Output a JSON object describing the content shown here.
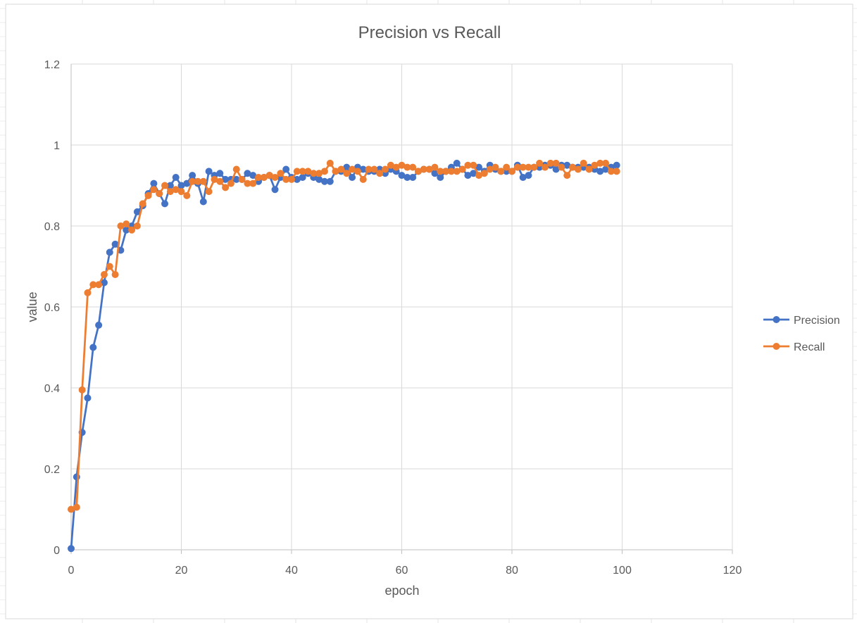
{
  "chart_data": {
    "type": "line",
    "title": "Precision vs Recall",
    "xlabel": "epoch",
    "ylabel": "value",
    "xlim": [
      0,
      120
    ],
    "ylim": [
      0,
      1.2
    ],
    "x_ticks": [
      "0",
      "20",
      "40",
      "60",
      "80",
      "100",
      "120"
    ],
    "y_ticks": [
      "0",
      "0.2",
      "0.4",
      "0.6",
      "0.8",
      "1",
      "1.2"
    ],
    "grid": true,
    "legend_position": "right",
    "x": [
      0,
      1,
      2,
      3,
      4,
      5,
      6,
      7,
      8,
      9,
      10,
      11,
      12,
      13,
      14,
      15,
      16,
      17,
      18,
      19,
      20,
      21,
      22,
      23,
      24,
      25,
      26,
      27,
      28,
      29,
      30,
      31,
      32,
      33,
      34,
      35,
      36,
      37,
      38,
      39,
      40,
      41,
      42,
      43,
      44,
      45,
      46,
      47,
      48,
      49,
      50,
      51,
      52,
      53,
      54,
      55,
      56,
      57,
      58,
      59,
      60,
      61,
      62,
      63,
      64,
      65,
      66,
      67,
      68,
      69,
      70,
      71,
      72,
      73,
      74,
      75,
      76,
      77,
      78,
      79,
      80,
      81,
      82,
      83,
      84,
      85,
      86,
      87,
      88,
      89,
      90,
      91,
      92,
      93,
      94,
      95,
      96,
      97,
      98,
      99
    ],
    "series": [
      {
        "name": "Precision",
        "color": "#4472C4",
        "values": [
          0.003,
          0.18,
          0.29,
          0.375,
          0.5,
          0.555,
          0.66,
          0.735,
          0.755,
          0.74,
          0.79,
          0.8,
          0.835,
          0.85,
          0.88,
          0.905,
          0.88,
          0.855,
          0.9,
          0.92,
          0.9,
          0.905,
          0.925,
          0.905,
          0.86,
          0.935,
          0.925,
          0.93,
          0.915,
          0.915,
          0.915,
          0.915,
          0.93,
          0.925,
          0.91,
          0.92,
          0.925,
          0.89,
          0.92,
          0.94,
          0.92,
          0.915,
          0.92,
          0.93,
          0.92,
          0.915,
          0.91,
          0.91,
          0.935,
          0.935,
          0.945,
          0.92,
          0.945,
          0.94,
          0.935,
          0.935,
          0.94,
          0.93,
          0.94,
          0.935,
          0.925,
          0.92,
          0.92,
          0.935,
          0.94,
          0.94,
          0.93,
          0.92,
          0.935,
          0.945,
          0.955,
          0.94,
          0.925,
          0.93,
          0.945,
          0.935,
          0.95,
          0.94,
          0.935,
          0.935,
          0.935,
          0.95,
          0.92,
          0.925,
          0.945,
          0.945,
          0.95,
          0.95,
          0.94,
          0.95,
          0.95,
          0.945,
          0.945,
          0.945,
          0.945,
          0.94,
          0.935,
          0.94,
          0.945,
          0.95
        ]
      },
      {
        "name": "Recall",
        "color": "#ED7D31",
        "values": [
          0.1,
          0.105,
          0.395,
          0.635,
          0.655,
          0.655,
          0.68,
          0.7,
          0.68,
          0.8,
          0.805,
          0.79,
          0.8,
          0.855,
          0.875,
          0.89,
          0.88,
          0.9,
          0.885,
          0.89,
          0.885,
          0.875,
          0.91,
          0.91,
          0.91,
          0.885,
          0.915,
          0.91,
          0.895,
          0.905,
          0.94,
          0.915,
          0.905,
          0.905,
          0.92,
          0.92,
          0.925,
          0.92,
          0.93,
          0.915,
          0.915,
          0.935,
          0.935,
          0.935,
          0.93,
          0.93,
          0.935,
          0.955,
          0.935,
          0.94,
          0.93,
          0.94,
          0.935,
          0.915,
          0.94,
          0.94,
          0.93,
          0.94,
          0.95,
          0.945,
          0.95,
          0.945,
          0.945,
          0.935,
          0.94,
          0.94,
          0.945,
          0.935,
          0.935,
          0.935,
          0.935,
          0.94,
          0.95,
          0.95,
          0.925,
          0.93,
          0.94,
          0.945,
          0.935,
          0.945,
          0.935,
          0.945,
          0.945,
          0.945,
          0.945,
          0.955,
          0.945,
          0.955,
          0.955,
          0.945,
          0.925,
          0.945,
          0.94,
          0.955,
          0.94,
          0.95,
          0.955,
          0.955,
          0.935,
          0.935
        ]
      }
    ]
  }
}
